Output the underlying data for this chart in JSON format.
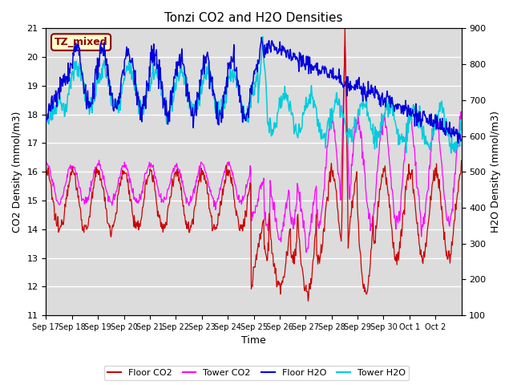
{
  "title": "Tonzi CO2 and H2O Densities",
  "xlabel": "Time",
  "ylabel_left": "CO2 Density (mmol/m3)",
  "ylabel_right": "H2O Density (mmol/m3)",
  "ylim_left": [
    11.0,
    21.0
  ],
  "ylim_right": [
    100,
    900
  ],
  "annotation_text": "TZ_mixed",
  "annotation_color": "#8B0000",
  "annotation_bg": "#FFFFCC",
  "colors": {
    "floor_co2": "#CC0000",
    "tower_co2": "#FF00FF",
    "floor_h2o": "#0000DD",
    "tower_h2o": "#00CCDD"
  },
  "legend_labels": [
    "Floor CO2",
    "Tower CO2",
    "Floor H2O",
    "Tower H2O"
  ],
  "xtick_labels": [
    "Sep 17",
    "Sep 18",
    "Sep 19",
    "Sep 20",
    "Sep 21",
    "Sep 22",
    "Sep 23",
    "Sep 24",
    "Sep 25",
    "Sep 26",
    "Sep 27",
    "Sep 28",
    "Sep 29",
    "Sep 30",
    "Oct 1",
    "Oct 2"
  ],
  "bg_color": "#DCDCDC",
  "grid_color": "#FFFFFF",
  "figsize": [
    6.4,
    4.8
  ],
  "dpi": 100
}
